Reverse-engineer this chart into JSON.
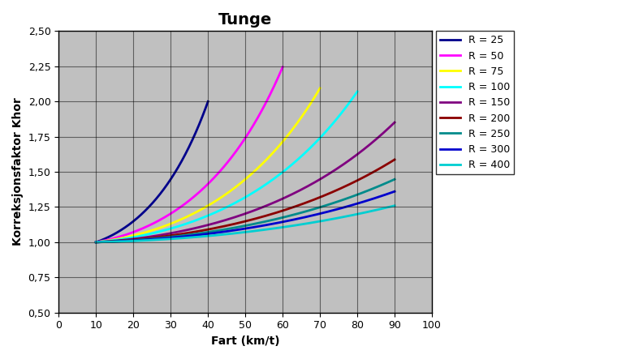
{
  "title": "Tunge",
  "xlabel": "Fart (km/t)",
  "ylabel": "Korreksjonsfaktor Khor",
  "xlim": [
    0,
    100
  ],
  "ylim": [
    0.5,
    2.5
  ],
  "xticks": [
    0,
    10,
    20,
    30,
    40,
    50,
    60,
    70,
    80,
    90,
    100
  ],
  "yticks": [
    0.5,
    0.75,
    1.0,
    1.25,
    1.5,
    1.75,
    2.0,
    2.25,
    2.5
  ],
  "series": [
    {
      "R": 25,
      "v_min": 10,
      "v_max": 40,
      "color": "#00008B"
    },
    {
      "R": 50,
      "v_min": 10,
      "v_max": 60,
      "color": "#FF00FF"
    },
    {
      "R": 75,
      "v_min": 10,
      "v_max": 70,
      "color": "#FFFF00"
    },
    {
      "R": 100,
      "v_min": 10,
      "v_max": 80,
      "color": "#00FFFF"
    },
    {
      "R": 150,
      "v_min": 10,
      "v_max": 90,
      "color": "#800080"
    },
    {
      "R": 200,
      "v_min": 10,
      "v_max": 90,
      "color": "#8B0000"
    },
    {
      "R": 250,
      "v_min": 10,
      "v_max": 90,
      "color": "#008B8B"
    },
    {
      "R": 300,
      "v_min": 10,
      "v_max": 90,
      "color": "#0000CD"
    },
    {
      "R": 400,
      "v_min": 10,
      "v_max": 90,
      "color": "#00CED1"
    }
  ],
  "background_color": "#C0C0C0",
  "grid_color": "#000000",
  "title_fontsize": 14,
  "axis_fontsize": 10,
  "tick_fontsize": 9,
  "legend_fontsize": 9,
  "line_width": 2.0
}
